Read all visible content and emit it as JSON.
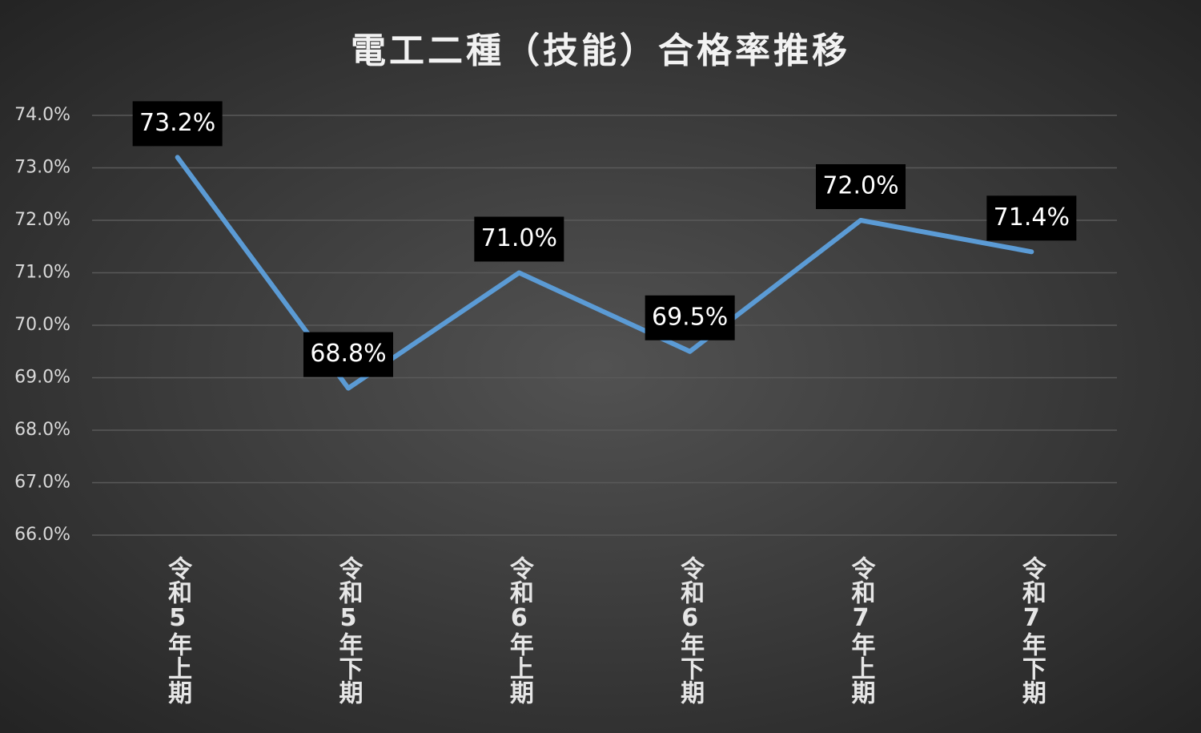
{
  "chart_data": {
    "type": "line",
    "title": "電工二種（技能）合格率推移",
    "categories": [
      "令和5年上期",
      "令和5年下期",
      "令和6年上期",
      "令和6年下期",
      "令和7年上期",
      "令和7年下期"
    ],
    "series": [
      {
        "name": "合格率",
        "color": "#5b9bd5",
        "values": [
          73.2,
          68.8,
          71.0,
          69.5,
          72.0,
          71.4
        ],
        "value_labels": [
          "73.2%",
          "68.8%",
          "71.0%",
          "69.5%",
          "72.0%",
          "71.4%"
        ]
      }
    ],
    "ylim": [
      66,
      74
    ],
    "yticks": [
      {
        "value": 66,
        "label": "66.0%"
      },
      {
        "value": 67,
        "label": "67.0%"
      },
      {
        "value": 68,
        "label": "68.0%"
      },
      {
        "value": 69,
        "label": "69.0%"
      },
      {
        "value": 70,
        "label": "70.0%"
      },
      {
        "value": 71,
        "label": "71.0%"
      },
      {
        "value": 72,
        "label": "72.0%"
      },
      {
        "value": 73,
        "label": "73.0%"
      },
      {
        "value": 74,
        "label": "74.0%"
      }
    ],
    "grid": true
  }
}
